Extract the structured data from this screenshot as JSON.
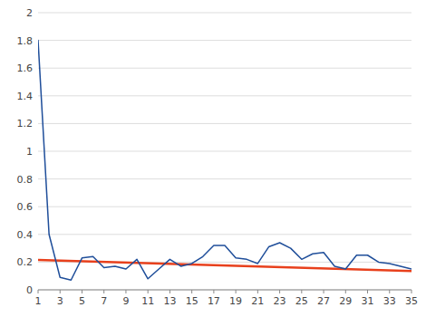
{
  "chart_data": {
    "type": "line",
    "x": [
      1,
      2,
      3,
      4,
      5,
      6,
      7,
      8,
      9,
      10,
      11,
      12,
      13,
      14,
      15,
      16,
      17,
      18,
      19,
      20,
      21,
      22,
      23,
      24,
      25,
      26,
      27,
      28,
      29,
      30,
      31,
      32,
      33,
      34,
      35
    ],
    "series": [
      {
        "color": "#1f4e9a",
        "values": [
          1.8,
          0.4,
          0.09,
          0.07,
          0.23,
          0.24,
          0.16,
          0.17,
          0.15,
          0.22,
          0.08,
          0.15,
          0.22,
          0.17,
          0.19,
          0.24,
          0.32,
          0.32,
          0.23,
          0.22,
          0.19,
          0.31,
          0.34,
          0.3,
          0.22,
          0.26,
          0.27,
          0.17,
          0.15,
          0.25,
          0.25,
          0.2,
          0.19,
          0.17,
          0.15
        ]
      },
      {
        "color": "#e8401c",
        "x": [
          1,
          35
        ],
        "values": [
          0.215,
          0.135
        ]
      }
    ],
    "xlim": [
      1,
      35
    ],
    "ylim": [
      0,
      2.0
    ],
    "xticks": [
      1,
      3,
      5,
      7,
      9,
      11,
      13,
      15,
      17,
      19,
      21,
      23,
      25,
      27,
      29,
      31,
      33,
      35
    ],
    "yticks": [
      0,
      0.2,
      0.4,
      0.6,
      0.8,
      1,
      1.2,
      1.4,
      1.6,
      1.8,
      2
    ],
    "grid": "y"
  }
}
